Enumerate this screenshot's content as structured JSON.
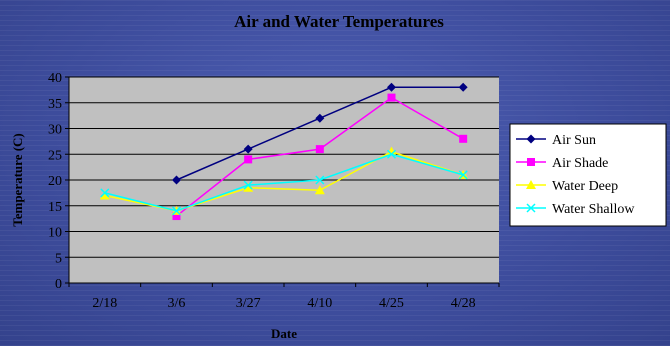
{
  "chart_data": {
    "type": "line",
    "title": "Air and Water Temperatures",
    "xlabel": "Date",
    "ylabel": "Temperature (C)",
    "categories": [
      "2/18",
      "3/6",
      "3/27",
      "4/10",
      "4/25",
      "4/28"
    ],
    "ylim": [
      0,
      40
    ],
    "yticks": [
      0,
      5,
      10,
      15,
      20,
      25,
      30,
      35,
      40
    ],
    "grid": "horizontal",
    "legend_position": "right",
    "series": [
      {
        "name": "Air Sun",
        "color": "#000080",
        "marker": "diamond",
        "values": [
          null,
          20,
          26,
          32,
          38,
          38
        ]
      },
      {
        "name": "Air Shade",
        "color": "#ff00ff",
        "marker": "square",
        "values": [
          null,
          13,
          24,
          26,
          36,
          28
        ]
      },
      {
        "name": "Water Deep",
        "color": "#ffff00",
        "marker": "triangle",
        "values": [
          17,
          14,
          18.5,
          18,
          25.5,
          21
        ]
      },
      {
        "name": "Water Shallow",
        "color": "#00ffff",
        "marker": "x",
        "values": [
          17.5,
          14,
          19,
          20,
          25,
          21
        ]
      }
    ]
  }
}
